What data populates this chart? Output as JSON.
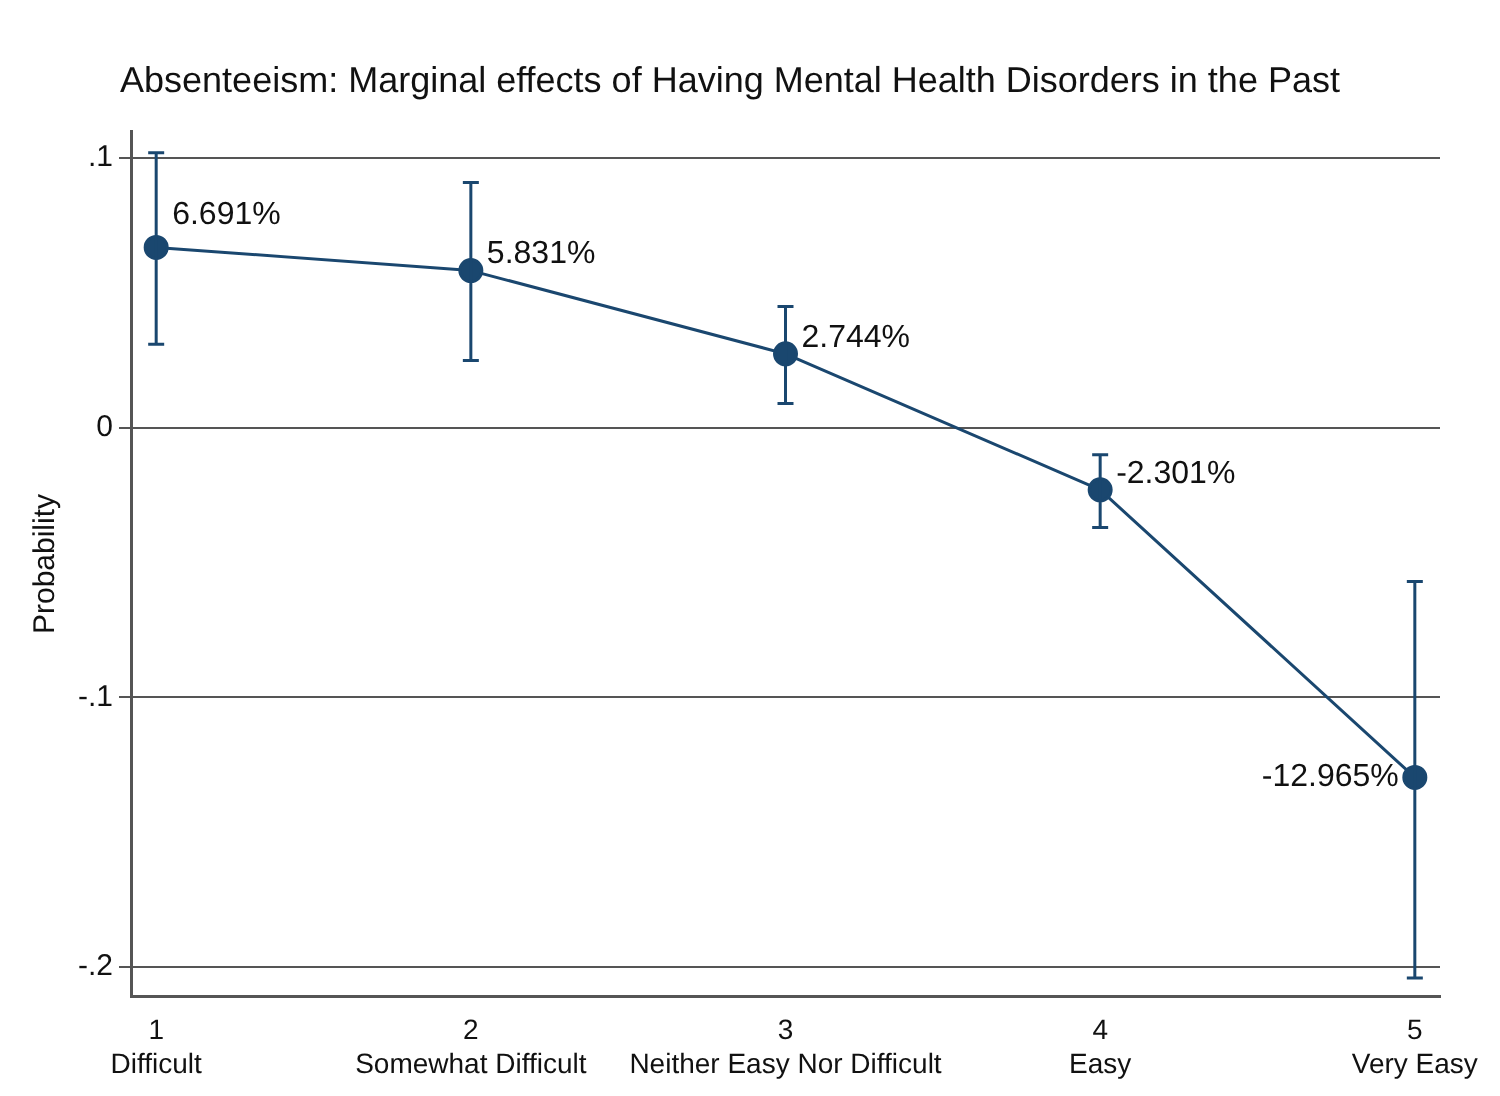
{
  "chart_data": {
    "type": "line",
    "title": "Absenteeism: Marginal effects of Having Mental Health Disorders in the Past",
    "ylabel": "Probability",
    "x": [
      1,
      2,
      3,
      4,
      5
    ],
    "series": [
      {
        "color": "#1a476f",
        "values": [
          0.06691,
          0.05831,
          0.02744,
          -0.02301,
          -0.12965
        ],
        "errors": [
          [
            0.031,
            0.102
          ],
          [
            0.025,
            0.091
          ],
          [
            0.009,
            0.045
          ],
          [
            -0.037,
            -0.01
          ],
          [
            -0.204,
            -0.057
          ]
        ],
        "value_labels": [
          "6.691%",
          "5.831%",
          "2.744%",
          "-2.301%",
          "-12.965%"
        ]
      }
    ],
    "xlim": [
      0.92,
      5.08
    ],
    "xticks": [
      {
        "value": 1,
        "label": "1\nDifficult"
      },
      {
        "value": 2,
        "label": "2\nSomewhat Difficult"
      },
      {
        "value": 3,
        "label": "3\nNeither Easy Nor Difficult"
      },
      {
        "value": 4,
        "label": "4\nEasy"
      },
      {
        "value": 5,
        "label": "5\nVery Easy"
      }
    ],
    "ylim": [
      -0.211,
      0.11
    ],
    "yticks": [
      {
        "value": -0.2,
        "label": "-.2"
      },
      {
        "value": -0.1,
        "label": "-.1"
      },
      {
        "value": 0,
        "label": "0"
      },
      {
        "value": 0.1,
        "label": ".1"
      }
    ],
    "grid": "y",
    "legend": false,
    "marker": "circle",
    "line_style": "solid"
  }
}
